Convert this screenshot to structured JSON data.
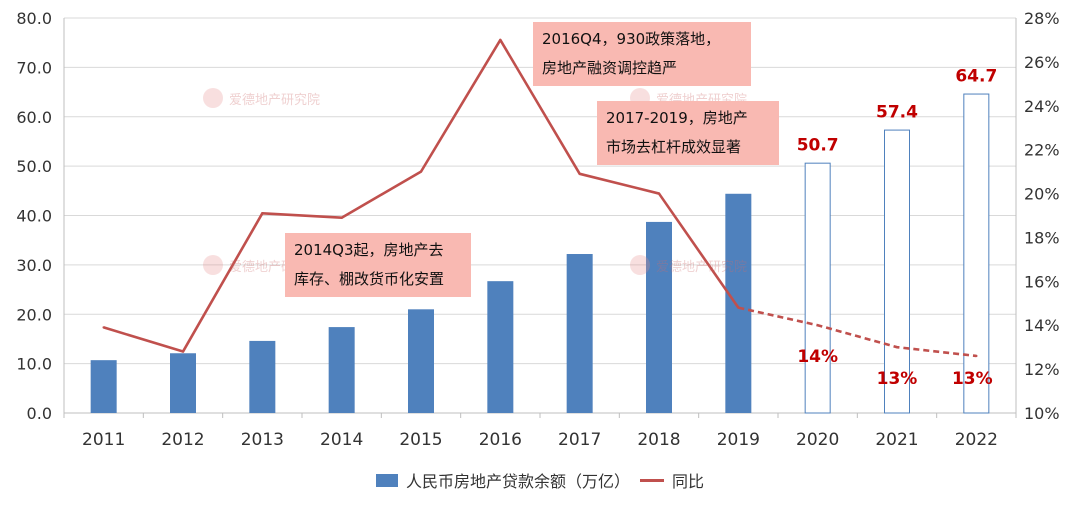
{
  "watermarks": [
    "爱德地产研究院",
    "爱德地产研究院",
    "爱德地产研究院",
    "爱德地产研究院"
  ],
  "annotations": [
    {
      "id": "a2014",
      "text": "2014Q3起，房地产去\n库存、棚改货币化安置"
    },
    {
      "id": "a2016",
      "text": "2016Q4，930政策落地，\n房地产融资调控趋严"
    },
    {
      "id": "a2017",
      "text": "2017-2019，房地产\n市场去杠杆成效显著"
    }
  ],
  "legend": {
    "bar": "人民币房地产贷款余额（万亿）",
    "line": "同比"
  },
  "chart_data": {
    "type": "bar",
    "categories": [
      "2011",
      "2012",
      "2013",
      "2014",
      "2015",
      "2016",
      "2017",
      "2018",
      "2019",
      "2020",
      "2021",
      "2022"
    ],
    "series": [
      {
        "name": "人民币房地产贷款余额（万亿）",
        "type": "bar",
        "axis": "left",
        "values": [
          10.7,
          12.1,
          14.6,
          17.4,
          21.0,
          26.7,
          32.2,
          38.7,
          44.4,
          50.7,
          57.4,
          64.7
        ],
        "data_labels": [
          null,
          null,
          null,
          null,
          null,
          null,
          null,
          null,
          null,
          "50.7",
          "57.4",
          "64.7"
        ],
        "projected_from": "2020",
        "color": "#4f81bd"
      },
      {
        "name": "同比",
        "type": "line",
        "axis": "right",
        "values": [
          13.9,
          12.8,
          19.1,
          18.9,
          21.0,
          27.0,
          20.9,
          20.0,
          14.8,
          14.0,
          13.0,
          12.6
        ],
        "data_labels": [
          null,
          null,
          null,
          null,
          null,
          null,
          null,
          null,
          null,
          "14%",
          "13%",
          "13%"
        ],
        "projected_from": "2019",
        "color": "#c0504d"
      }
    ],
    "y_left": {
      "range": [
        0,
        80
      ],
      "ticks": [
        "0.0",
        "10.0",
        "20.0",
        "30.0",
        "40.0",
        "50.0",
        "60.0",
        "70.0",
        "80.0"
      ]
    },
    "y_right": {
      "range": [
        10,
        28
      ],
      "ticks": [
        "10%",
        "12%",
        "14%",
        "16%",
        "18%",
        "20%",
        "22%",
        "24%",
        "26%",
        "28%"
      ]
    },
    "grid": true,
    "legend_position": "bottom",
    "colors": {
      "bar": "#4f81bd",
      "line": "#c0504d",
      "label": "#c00000"
    }
  }
}
